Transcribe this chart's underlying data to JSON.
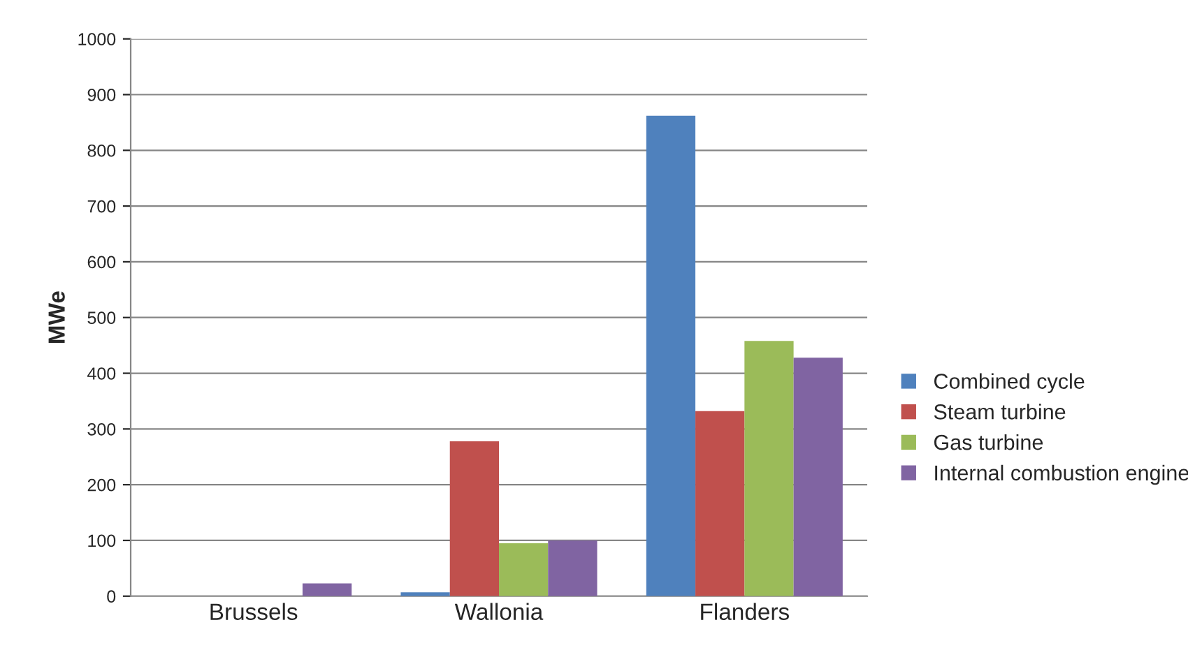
{
  "chart_data": {
    "type": "bar",
    "ylabel": "MWe",
    "categories": [
      "Brussels",
      "Wallonia",
      "Flanders"
    ],
    "series": [
      {
        "name": "Combined cycle",
        "color": "#4f81bd",
        "values": [
          0,
          7,
          862
        ]
      },
      {
        "name": "Steam turbine",
        "color": "#c0504d",
        "values": [
          0,
          278,
          332
        ]
      },
      {
        "name": "Gas turbine",
        "color": "#9bbb59",
        "values": [
          0,
          95,
          458
        ]
      },
      {
        "name": "Internal combustion engine",
        "color": "#8064a2",
        "values": [
          23,
          100,
          428
        ]
      }
    ],
    "ylim": [
      0,
      1000
    ],
    "yticks": [
      0,
      100,
      200,
      300,
      400,
      500,
      600,
      700,
      800,
      900,
      1000
    ],
    "grid": "y",
    "legend": "right"
  }
}
